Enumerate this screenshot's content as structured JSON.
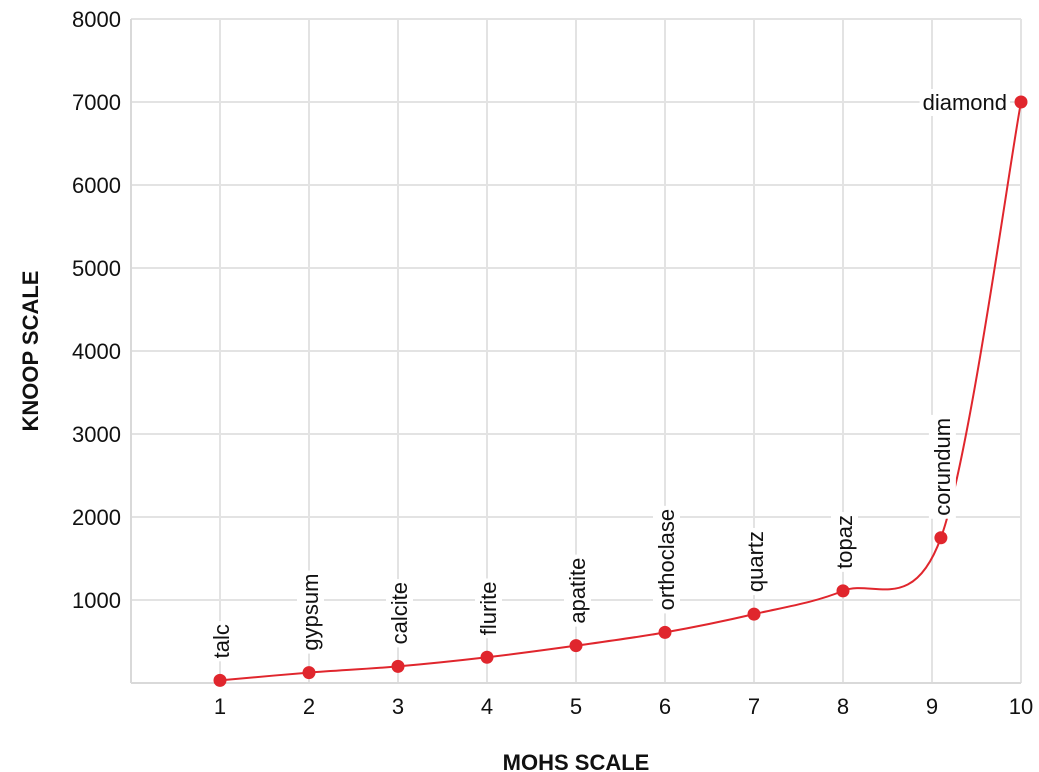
{
  "chart_data": {
    "type": "line",
    "xlabel": "MOHS SCALE",
    "ylabel": "KNOOP SCALE",
    "xlim": [
      0,
      10
    ],
    "ylim": [
      0,
      8000
    ],
    "x_ticks": [
      "1",
      "2",
      "3",
      "4",
      "5",
      "6",
      "7",
      "8",
      "9",
      "10"
    ],
    "y_ticks": [
      "1000",
      "2000",
      "3000",
      "4000",
      "5000",
      "6000",
      "7000",
      "8000"
    ],
    "grid": true,
    "line_color": "#e0262d",
    "series": [
      {
        "points": [
          {
            "x": 1,
            "y": 32,
            "label": "talc"
          },
          {
            "x": 2,
            "y": 125,
            "label": "gypsum"
          },
          {
            "x": 3,
            "y": 200,
            "label": "calcite"
          },
          {
            "x": 4,
            "y": 310,
            "label": "flurite"
          },
          {
            "x": 5,
            "y": 450,
            "label": "apatite"
          },
          {
            "x": 6,
            "y": 610,
            "label": "orthoclase"
          },
          {
            "x": 7,
            "y": 830,
            "label": "quartz"
          },
          {
            "x": 8,
            "y": 1110,
            "label": "topaz"
          },
          {
            "x": 9.1,
            "y": 1750,
            "label": "corundum"
          },
          {
            "x": 10,
            "y": 7000,
            "label": "diamond"
          }
        ]
      }
    ]
  }
}
